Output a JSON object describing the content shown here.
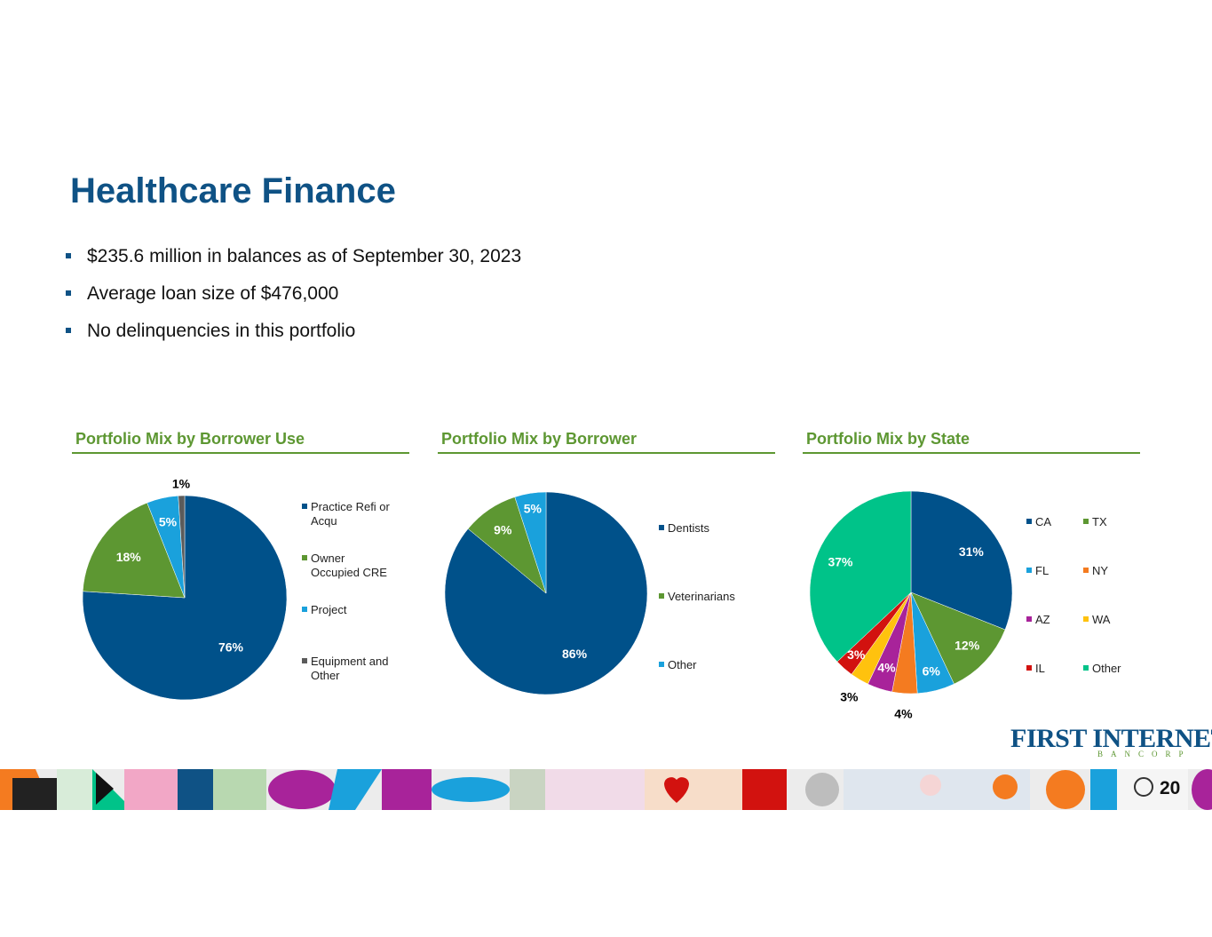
{
  "slide": {
    "title": "Healthcare Finance",
    "bullets": [
      "$235.6 million in balances as of September 30, 2023",
      "Average loan size of $476,000",
      "No delinquencies in this portfolio"
    ],
    "page_number": "20"
  },
  "logo": {
    "main": "FIRST INTERNET",
    "sub": "BANCORP"
  },
  "colors": {
    "title": "#0f5285",
    "section": "#5d9732",
    "navy": "#00518a",
    "green": "#5d9732",
    "cyan": "#1aa1dc",
    "gray": "#5b5b5b",
    "orange": "#f47b20",
    "purple": "#a8239a",
    "yellow": "#ffc20e",
    "red": "#d2120f",
    "teal": "#00c389"
  },
  "chart_data": [
    {
      "type": "pie",
      "title": "Portfolio Mix by Borrower Use",
      "categories": [
        "Practice Refi or Acqu",
        "Owner Occupied CRE",
        "Project",
        "Equipment and Other"
      ],
      "legend_lines": [
        [
          "Practice Refi or",
          "Acqu"
        ],
        [
          "Owner",
          "Occupied CRE"
        ],
        [
          "Project"
        ],
        [
          "Equipment and",
          "Other"
        ]
      ],
      "values": [
        76,
        18,
        5,
        1
      ],
      "labels": [
        "76%",
        "18%",
        "5%",
        "1%"
      ],
      "colors": [
        "#00518a",
        "#5d9732",
        "#1aa1dc",
        "#5b5b5b"
      ],
      "legend": "right"
    },
    {
      "type": "pie",
      "title": "Portfolio Mix by Borrower",
      "categories": [
        "Dentists",
        "Veterinarians",
        "Other"
      ],
      "legend_lines": [
        [
          "Dentists"
        ],
        [
          "Veterinarians"
        ],
        [
          "Other"
        ]
      ],
      "values": [
        86,
        9,
        5
      ],
      "labels": [
        "86%",
        "9%",
        "5%"
      ],
      "colors": [
        "#00518a",
        "#5d9732",
        "#1aa1dc"
      ],
      "legend": "right"
    },
    {
      "type": "pie",
      "title": "Portfolio Mix by State",
      "categories": [
        "CA",
        "TX",
        "FL",
        "NY",
        "AZ",
        "WA",
        "IL",
        "Other"
      ],
      "values": [
        31,
        12,
        6,
        4,
        4,
        3,
        3,
        37
      ],
      "labels": [
        "31%",
        "12%",
        "6%",
        "4%",
        "4%",
        "3%",
        "3%",
        "37%"
      ],
      "colors": [
        "#00518a",
        "#5d9732",
        "#1aa1dc",
        "#f47b20",
        "#a8239a",
        "#ffc20e",
        "#d2120f",
        "#00c389"
      ],
      "legend": "right, two columns"
    }
  ]
}
